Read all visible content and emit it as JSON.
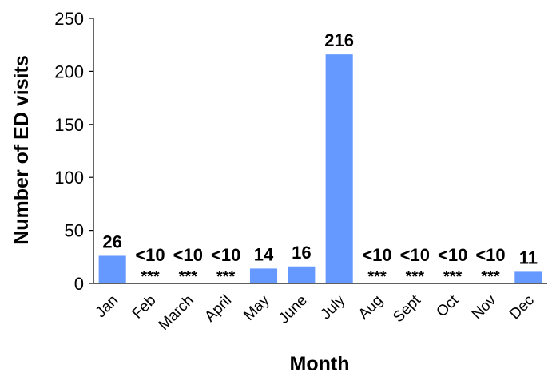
{
  "chart_data": {
    "type": "bar",
    "title": "",
    "xlabel": "Month",
    "ylabel": "Number of ED visits",
    "ylim": [
      0,
      250
    ],
    "yticks": [
      0,
      50,
      100,
      150,
      200,
      250
    ],
    "grid": false,
    "legend": "none",
    "bar_color": "#6699ff",
    "categories": [
      "Jan",
      "Feb",
      "March",
      "April",
      "May",
      "June",
      "July",
      "Aug",
      "Sept",
      "Oct",
      "Nov",
      "Dec"
    ],
    "values": [
      26,
      0,
      0,
      0,
      14,
      16,
      216,
      0,
      0,
      0,
      0,
      11
    ],
    "data_labels": [
      "26",
      "<10",
      "<10",
      "<10",
      "14",
      "16",
      "216",
      "<10",
      "<10",
      "<10",
      "<10",
      "11"
    ],
    "suppressed_marks": [
      "",
      "***",
      "***",
      "***",
      "",
      "",
      "",
      "***",
      "***",
      "***",
      "***",
      ""
    ]
  }
}
